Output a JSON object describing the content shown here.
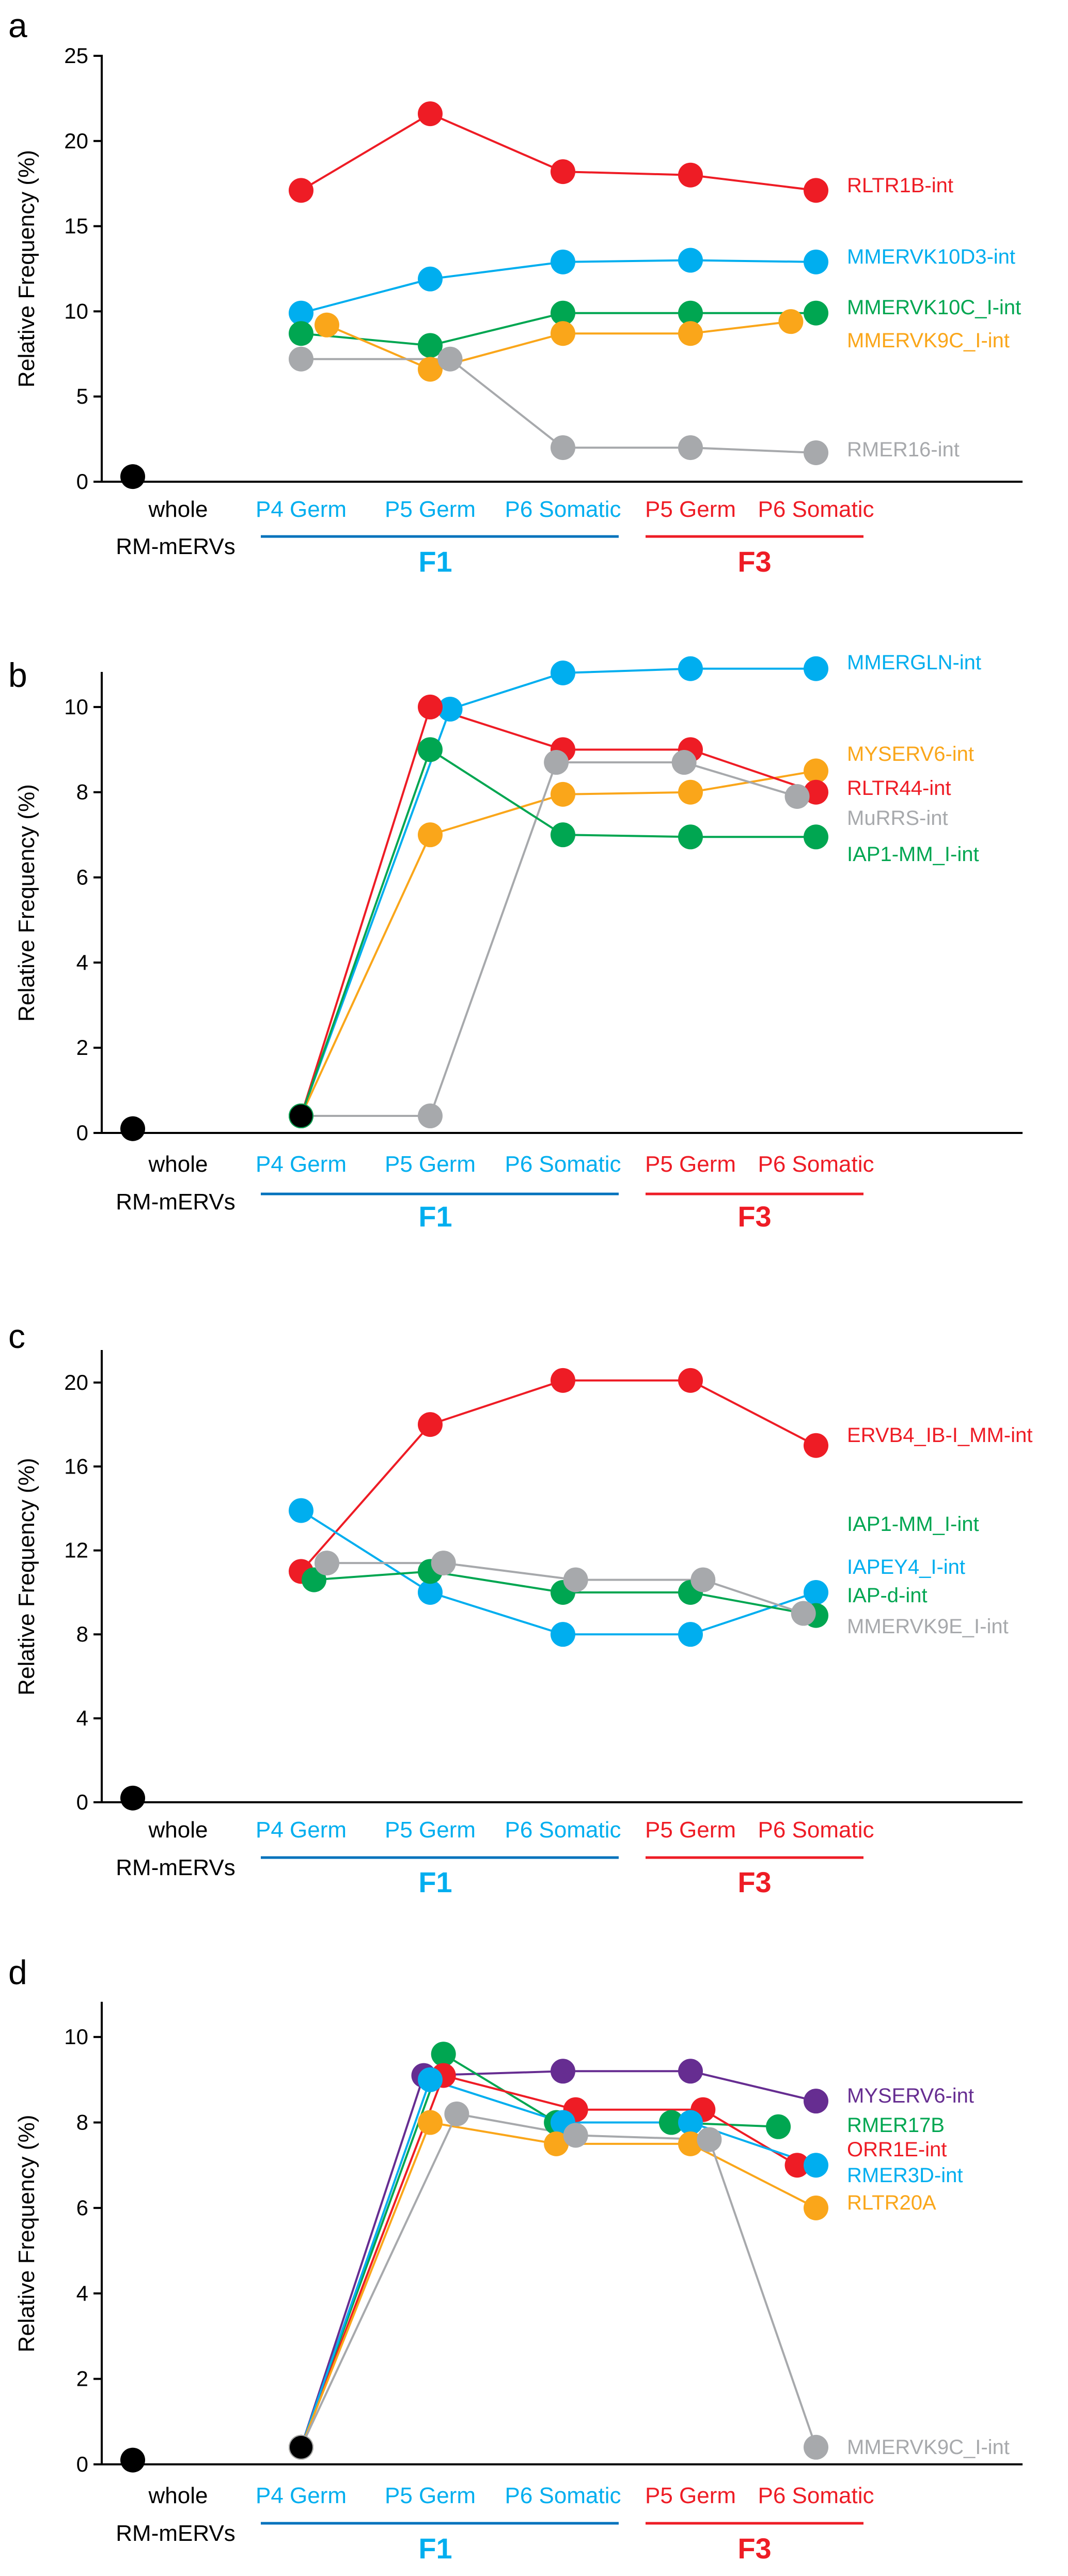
{
  "figure": {
    "x_categories": [
      "whole\nRM-mERVs",
      "P4 Germ",
      "P5 Germ",
      "P6 Somatic",
      "P5 Germ",
      "P6 Somatic"
    ],
    "group_labels": [
      "F1",
      "F3"
    ],
    "colors": {
      "black": "#000000",
      "red": "#ee1c25",
      "blue": "#00aeef",
      "green": "#00a651",
      "orange": "#faa61a",
      "gray": "#a7a9ac",
      "purple": "#662d91",
      "f1_blue": "#0072bc",
      "f1_text": "#00aeef",
      "f3_red": "#ee1c25"
    }
  },
  "chart_data": [
    {
      "panel": "a",
      "type": "line",
      "ylabel": "Relative Frequency (%)",
      "ylim": [
        0,
        25
      ],
      "yticks": [
        0,
        5,
        10,
        15,
        20,
        25
      ],
      "categories": [
        "whole RM-mERVs",
        "P4 Germ",
        "P5 Germ",
        "P6 Somatic",
        "P5 Germ",
        "P6 Somatic"
      ],
      "baseline": {
        "x": 0,
        "y": 0.3,
        "color": "#000000"
      },
      "series": [
        {
          "name": "RLTR1B-int",
          "color": "#ee1c25",
          "x": [
            1,
            2,
            3,
            4,
            5
          ],
          "values": [
            17.1,
            21.6,
            18.2,
            18.0,
            17.1
          ]
        },
        {
          "name": "MMERVK10D3-int",
          "color": "#00aeef",
          "x": [
            1,
            2,
            3,
            4,
            5
          ],
          "values": [
            9.9,
            11.9,
            12.9,
            13.0,
            12.9
          ]
        },
        {
          "name": "MMERVK10C_I-int",
          "color": "#00a651",
          "x": [
            1,
            2,
            3,
            4,
            5
          ],
          "values": [
            8.7,
            8.0,
            9.9,
            9.9,
            9.9
          ]
        },
        {
          "name": "MMERVK9C_I-int",
          "color": "#faa61a",
          "x": [
            1.2,
            2,
            3,
            4,
            4.8
          ],
          "values": [
            9.2,
            6.6,
            8.7,
            8.7,
            9.4
          ]
        },
        {
          "name": "RMER16-int",
          "color": "#a7a9ac",
          "x": [
            1,
            2.15,
            3,
            4,
            5
          ],
          "values": [
            7.2,
            7.2,
            2.0,
            2.0,
            1.7
          ]
        }
      ]
    },
    {
      "panel": "b",
      "type": "line",
      "ylabel": "Relative Frequency (%)",
      "ylim": [
        0,
        10.8
      ],
      "yticks": [
        0,
        2,
        4,
        6,
        8,
        10
      ],
      "categories": [
        "whole RM-mERVs",
        "P4 Germ",
        "P5 Germ",
        "P6 Somatic",
        "P5 Germ",
        "P6 Somatic"
      ],
      "baseline": {
        "x": 0,
        "y": 0.1,
        "color": "#000000"
      },
      "start_point": {
        "x": 1,
        "y": 0.4,
        "color": "#000000"
      },
      "series": [
        {
          "name": "MMERGLN-int",
          "color": "#00aeef",
          "x": [
            1,
            2.15,
            3,
            4,
            5
          ],
          "values": [
            0.4,
            9.95,
            10.8,
            10.9,
            10.9
          ]
        },
        {
          "name": "MYSERV6-int",
          "color": "#faa61a",
          "x": [
            1,
            2,
            3,
            4,
            5
          ],
          "values": [
            0.4,
            7.0,
            7.95,
            8.0,
            8.5
          ]
        },
        {
          "name": "RLTR44-int",
          "color": "#ee1c25",
          "x": [
            1,
            2,
            3,
            4,
            5
          ],
          "values": [
            0.4,
            10.0,
            9.0,
            9.0,
            8.0
          ]
        },
        {
          "name": "MuRRS-int",
          "color": "#a7a9ac",
          "x": [
            1,
            2,
            2.95,
            3.95,
            4.85
          ],
          "values": [
            0.4,
            0.4,
            8.7,
            8.7,
            7.9
          ]
        },
        {
          "name": "IAP1-MM_I-int",
          "color": "#00a651",
          "x": [
            1,
            2,
            3,
            4,
            5
          ],
          "values": [
            0.4,
            9.0,
            7.0,
            6.95,
            6.95
          ]
        }
      ]
    },
    {
      "panel": "c",
      "type": "line",
      "ylabel": "Relative Frequency (%)",
      "ylim": [
        0,
        21.5
      ],
      "yticks": [
        0,
        4,
        8,
        12,
        16,
        20
      ],
      "categories": [
        "whole RM-mERVs",
        "P4 Germ",
        "P5 Germ",
        "P6 Somatic",
        "P5 Germ",
        "P6 Somatic"
      ],
      "baseline": {
        "x": 0,
        "y": 0.2,
        "color": "#000000"
      },
      "series": [
        {
          "name": "ERVB4_IB-I_MM-int",
          "color": "#ee1c25",
          "x": [
            1,
            2,
            3,
            4,
            5
          ],
          "values": [
            11.0,
            18.0,
            20.1,
            20.1,
            17.0
          ]
        },
        {
          "name": "IAP1-MM_I-int",
          "color": "#00a651",
          "x": [],
          "values": []
        },
        {
          "name": "IAPEY4_I-int",
          "color": "#00aeef",
          "x": [
            1,
            2,
            3,
            4,
            5
          ],
          "values": [
            13.9,
            10.0,
            8.0,
            8.0,
            10.0
          ]
        },
        {
          "name": "IAP-d-int",
          "color": "#00a651",
          "x": [
            1.1,
            2,
            3,
            4,
            5
          ],
          "values": [
            10.6,
            11.0,
            10.0,
            10.0,
            8.9
          ]
        },
        {
          "name": "MMERVK9E_I-int",
          "color": "#a7a9ac",
          "x": [
            1.2,
            2.1,
            3.1,
            4.1,
            4.9
          ],
          "values": [
            11.4,
            11.4,
            10.6,
            10.6,
            9.0
          ]
        }
      ]
    },
    {
      "panel": "d",
      "type": "line",
      "ylabel": "Relative Frequency (%)",
      "ylim": [
        0,
        10.8
      ],
      "yticks": [
        0,
        2,
        4,
        6,
        8,
        10
      ],
      "categories": [
        "whole RM-mERVs",
        "P4 Germ",
        "P5 Germ",
        "P6 Somatic",
        "P5 Germ",
        "P6 Somatic"
      ],
      "baseline": {
        "x": 0,
        "y": 0.1,
        "color": "#000000"
      },
      "start_point": {
        "x": 1,
        "y": 0.4,
        "color": "#000000"
      },
      "series": [
        {
          "name": "MYSERV6-int",
          "color": "#662d91",
          "x": [
            1,
            1.95,
            3,
            4,
            5
          ],
          "values": [
            0.4,
            9.1,
            9.2,
            9.2,
            8.5
          ]
        },
        {
          "name": "RMER17B",
          "color": "#00a651",
          "x": [
            1,
            2.1,
            2.95,
            3.85,
            4.7
          ],
          "values": [
            0.4,
            9.6,
            8.0,
            8.0,
            7.9
          ]
        },
        {
          "name": "ORR1E-int",
          "color": "#ee1c25",
          "x": [
            1,
            2.1,
            3.1,
            4.1,
            4.85
          ],
          "values": [
            0.4,
            9.1,
            8.3,
            8.3,
            7.0
          ]
        },
        {
          "name": "RMER3D-int",
          "color": "#00aeef",
          "x": [
            1,
            2,
            3,
            4,
            5
          ],
          "values": [
            0.4,
            9.0,
            8.0,
            8.0,
            7.0
          ]
        },
        {
          "name": "RLTR20A",
          "color": "#faa61a",
          "x": [
            1,
            2,
            2.95,
            4,
            5
          ],
          "values": [
            0.4,
            8.0,
            7.5,
            7.5,
            6.0
          ]
        },
        {
          "name": "MMERVK9C_I-int",
          "color": "#a7a9ac",
          "x": [
            1,
            2.2,
            3.1,
            4.15,
            5
          ],
          "values": [
            0.4,
            8.2,
            7.7,
            7.6,
            0.4
          ]
        }
      ]
    }
  ]
}
